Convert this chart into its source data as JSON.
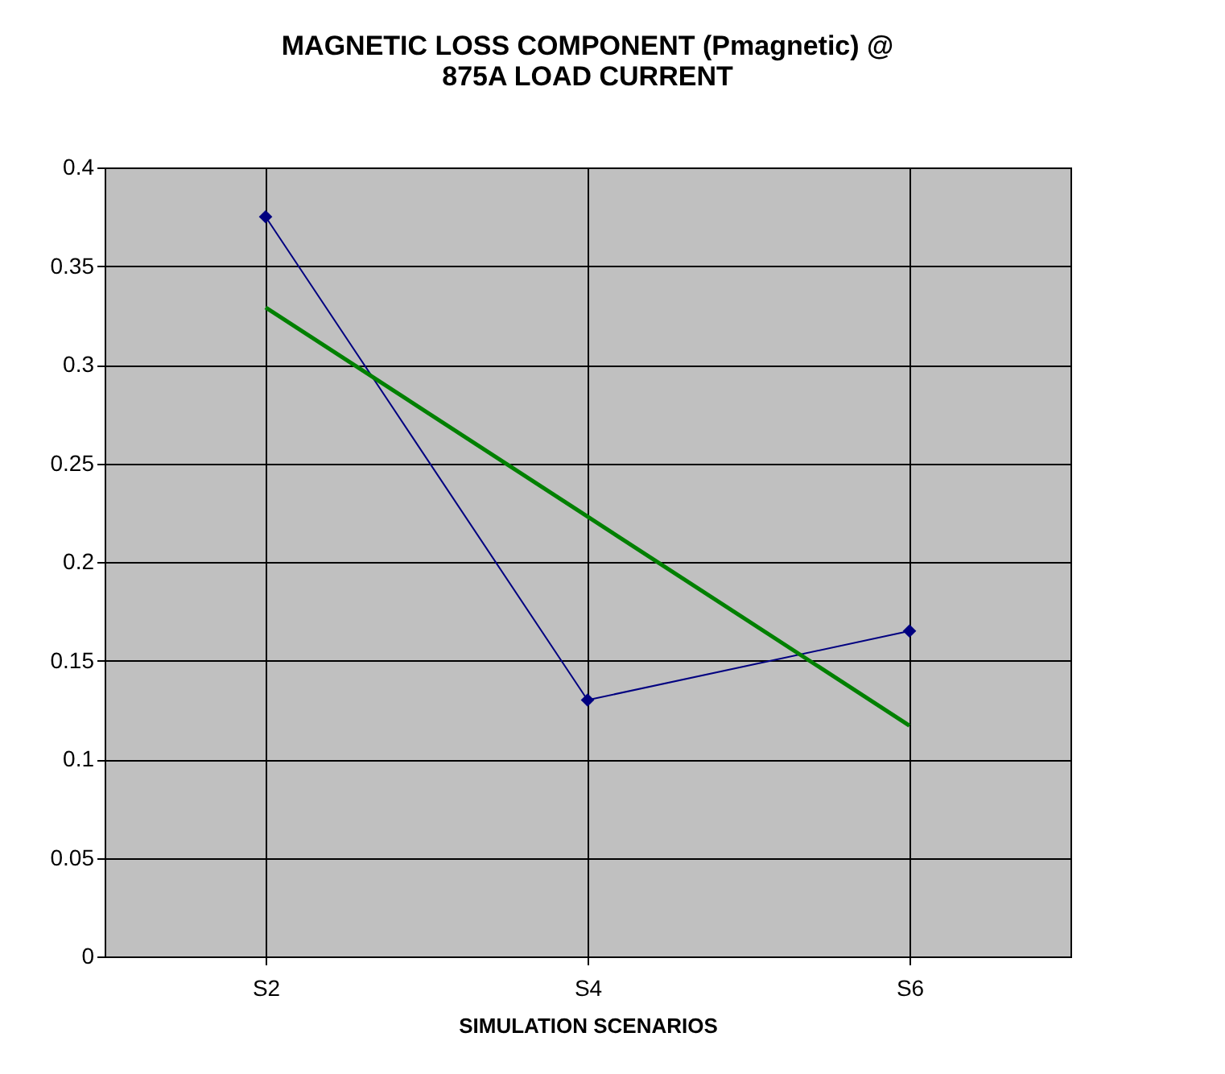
{
  "chart_data": {
    "type": "line",
    "title": [
      "MAGNETIC LOSS COMPONENT (Pmagnetic) @",
      "875A LOAD CURRENT"
    ],
    "xlabel": "SIMULATION SCENARIOS",
    "categories": [
      "S2",
      "S4",
      "S6"
    ],
    "series": [
      {
        "color": "#000080",
        "values": [
          0.375,
          0.13,
          0.165
        ],
        "marker": "diamond"
      },
      {
        "type": "line",
        "color": "#008000",
        "values": [
          0.329,
          0.223,
          0.117
        ],
        "marker": "none"
      }
    ],
    "ylim": [
      0,
      0.4
    ],
    "yticks": [
      0,
      0.05,
      0.1,
      0.15,
      0.2,
      0.25,
      0.3,
      0.35,
      0.4
    ],
    "grid": true
  }
}
